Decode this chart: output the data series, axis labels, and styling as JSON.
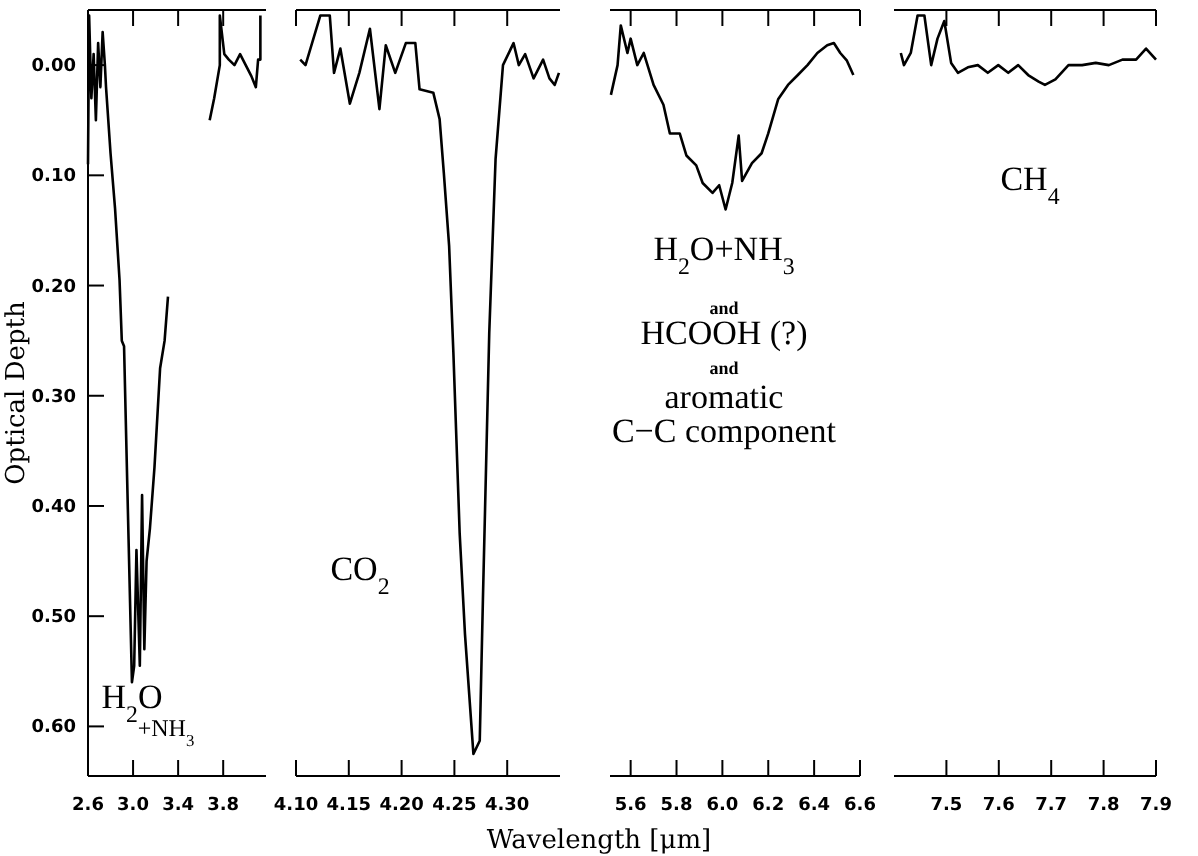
{
  "chart_data": [
    {
      "type": "line",
      "ylabel": "Optical Depth",
      "xlim": [
        2.6,
        4.18
      ],
      "ylim": [
        0.645,
        -0.05
      ],
      "xticks": [
        {
          "value": 2.6,
          "label": "2.6"
        },
        {
          "value": 3.0,
          "label": "3.0"
        },
        {
          "value": 3.4,
          "label": "3.4"
        },
        {
          "value": 3.8,
          "label": "3.8"
        }
      ],
      "yticks": [
        {
          "value": 0,
          "label": "0.00"
        },
        {
          "value": 0.1,
          "label": "0.10"
        },
        {
          "value": 0.2,
          "label": "0.20"
        },
        {
          "value": 0.3,
          "label": "0.30"
        },
        {
          "value": 0.4,
          "label": "0.40"
        },
        {
          "value": 0.5,
          "label": "0.50"
        },
        {
          "value": 0.6,
          "label": "0.60"
        }
      ],
      "series": [
        {
          "color": "#000000",
          "x": [
            2.6,
            2.61,
            2.63,
            2.65,
            2.67,
            2.69,
            2.71,
            2.73,
            2.75,
            2.76,
            2.8,
            2.84,
            2.88,
            2.9,
            2.92,
            2.96,
            2.99,
            3.01,
            3.03,
            3.06,
            3.08,
            3.1,
            3.12,
            3.15,
            3.19,
            3.24,
            3.28,
            3.31
          ],
          "values": [
            0.09,
            -0.045,
            0.03,
            -0.01,
            0.05,
            -0.02,
            0.02,
            -0.03,
            0.0,
            0.02,
            0.08,
            0.13,
            0.195,
            0.25,
            0.255,
            0.43,
            0.56,
            0.545,
            0.44,
            0.545,
            0.39,
            0.53,
            0.45,
            0.42,
            0.365,
            0.275,
            0.25,
            0.21
          ]
        },
        {
          "color": "#000000",
          "x": [
            3.68,
            3.72,
            3.77,
            3.77,
            3.81,
            3.85,
            3.9,
            3.95,
            4.0,
            4.05,
            4.09,
            4.11,
            4.13,
            4.13
          ],
          "values": [
            0.05,
            0.03,
            0.0,
            -0.045,
            -0.01,
            -0.005,
            0.0,
            -0.01,
            0.0,
            0.01,
            0.02,
            -0.005,
            -0.005,
            -0.045
          ]
        }
      ],
      "annotations": [
        "H$_{2}$O",
        "+NH$_{3}$"
      ],
      "tick_labels": true
    },
    {
      "type": "line",
      "xlabel": "Wavelength [μm]",
      "xlim": [
        4.1,
        4.35
      ],
      "ylim": [
        0.645,
        -0.05
      ],
      "xticks": [
        {
          "value": 4.1,
          "label": "4.10"
        },
        {
          "value": 4.15,
          "label": "4.15"
        },
        {
          "value": 4.2,
          "label": "4.20"
        },
        {
          "value": 4.25,
          "label": "4.25"
        },
        {
          "value": 4.3,
          "label": "4.30"
        }
      ],
      "series": [
        {
          "color": "#000000",
          "x": [
            4.104,
            4.109,
            4.123,
            4.132,
            4.136,
            4.142,
            4.151,
            4.16,
            4.17,
            4.179,
            4.185,
            4.194,
            4.204,
            4.213,
            4.217,
            4.23,
            4.236,
            4.24,
            4.245,
            4.249,
            4.255,
            4.26,
            4.268,
            4.274,
            4.277,
            4.283,
            4.289,
            4.296,
            4.306,
            4.311,
            4.317,
            4.325,
            4.334,
            4.34,
            4.345,
            4.349
          ],
          "values": [
            -0.005,
            0.0,
            -0.045,
            -0.045,
            0.007,
            -0.015,
            0.035,
            0.007,
            -0.033,
            0.04,
            -0.018,
            0.007,
            -0.02,
            -0.02,
            0.022,
            0.025,
            0.049,
            0.098,
            0.164,
            0.26,
            0.425,
            0.516,
            0.625,
            0.613,
            0.485,
            0.243,
            0.085,
            0.0,
            -0.02,
            0.0,
            -0.01,
            0.012,
            -0.005,
            0.012,
            0.018,
            0.007
          ]
        }
      ],
      "annotations": [
        "CO$_{2}$"
      ],
      "tick_labels": "x"
    },
    {
      "type": "line",
      "xlim": [
        5.51,
        6.6
      ],
      "ylim": [
        0.645,
        -0.05
      ],
      "xticks": [
        {
          "value": 5.6,
          "label": "5.6"
        },
        {
          "value": 5.8,
          "label": "5.8"
        },
        {
          "value": 6.0,
          "label": "6.0"
        },
        {
          "value": 6.2,
          "label": "6.2"
        },
        {
          "value": 6.4,
          "label": "6.4"
        },
        {
          "value": 6.6,
          "label": "6.6"
        }
      ],
      "series": [
        {
          "color": "#000000",
          "x": [
            5.514,
            5.543,
            5.557,
            5.586,
            5.6,
            5.629,
            5.657,
            5.7,
            5.743,
            5.771,
            5.814,
            5.843,
            5.886,
            5.914,
            5.957,
            5.986,
            6.014,
            6.043,
            6.071,
            6.086,
            6.129,
            6.171,
            6.2,
            6.243,
            6.286,
            6.329,
            6.371,
            6.414,
            6.457,
            6.486,
            6.514,
            6.543,
            6.571
          ],
          "values": [
            0.027,
            0.0,
            -0.036,
            -0.011,
            -0.024,
            0.0,
            -0.011,
            0.018,
            0.036,
            0.062,
            0.062,
            0.082,
            0.091,
            0.107,
            0.116,
            0.109,
            0.131,
            0.107,
            0.064,
            0.105,
            0.089,
            0.08,
            0.062,
            0.031,
            0.018,
            0.009,
            0.0,
            -0.011,
            -0.018,
            -0.02,
            -0.011,
            -0.004,
            0.009
          ]
        }
      ],
      "annotations": [
        "H$_{2}$O+NH$_{3}$",
        "and",
        "HCOOH (?)",
        "and",
        "aromatic",
        "C−C component"
      ],
      "tick_labels": "x"
    },
    {
      "type": "line",
      "xlim": [
        7.4,
        7.9
      ],
      "ylim": [
        0.645,
        -0.05
      ],
      "xticks": [
        {
          "value": 7.5,
          "label": "7.5"
        },
        {
          "value": 7.6,
          "label": "7.6"
        },
        {
          "value": 7.7,
          "label": "7.7"
        },
        {
          "value": 7.8,
          "label": "7.8"
        },
        {
          "value": 7.9,
          "label": "7.9"
        }
      ],
      "series": [
        {
          "color": "#000000",
          "x": [
            7.413,
            7.419,
            7.432,
            7.445,
            7.458,
            7.471,
            7.483,
            7.496,
            7.509,
            7.522,
            7.541,
            7.56,
            7.579,
            7.599,
            7.618,
            7.637,
            7.656,
            7.676,
            7.688,
            7.708,
            7.733,
            7.759,
            7.785,
            7.81,
            7.836,
            7.862,
            7.881,
            7.9
          ],
          "values": [
            -0.011,
            0.0,
            -0.011,
            -0.045,
            -0.045,
            0.0,
            -0.024,
            -0.04,
            -0.002,
            0.007,
            0.002,
            0.0,
            0.007,
            0.0,
            0.007,
            0.0,
            0.009,
            0.015,
            0.018,
            0.013,
            0.0,
            0.0,
            -0.002,
            0.0,
            -0.005,
            -0.005,
            -0.015,
            -0.005
          ]
        }
      ],
      "annotations": [
        "CH$_{4}$"
      ],
      "tick_labels": "x"
    }
  ]
}
